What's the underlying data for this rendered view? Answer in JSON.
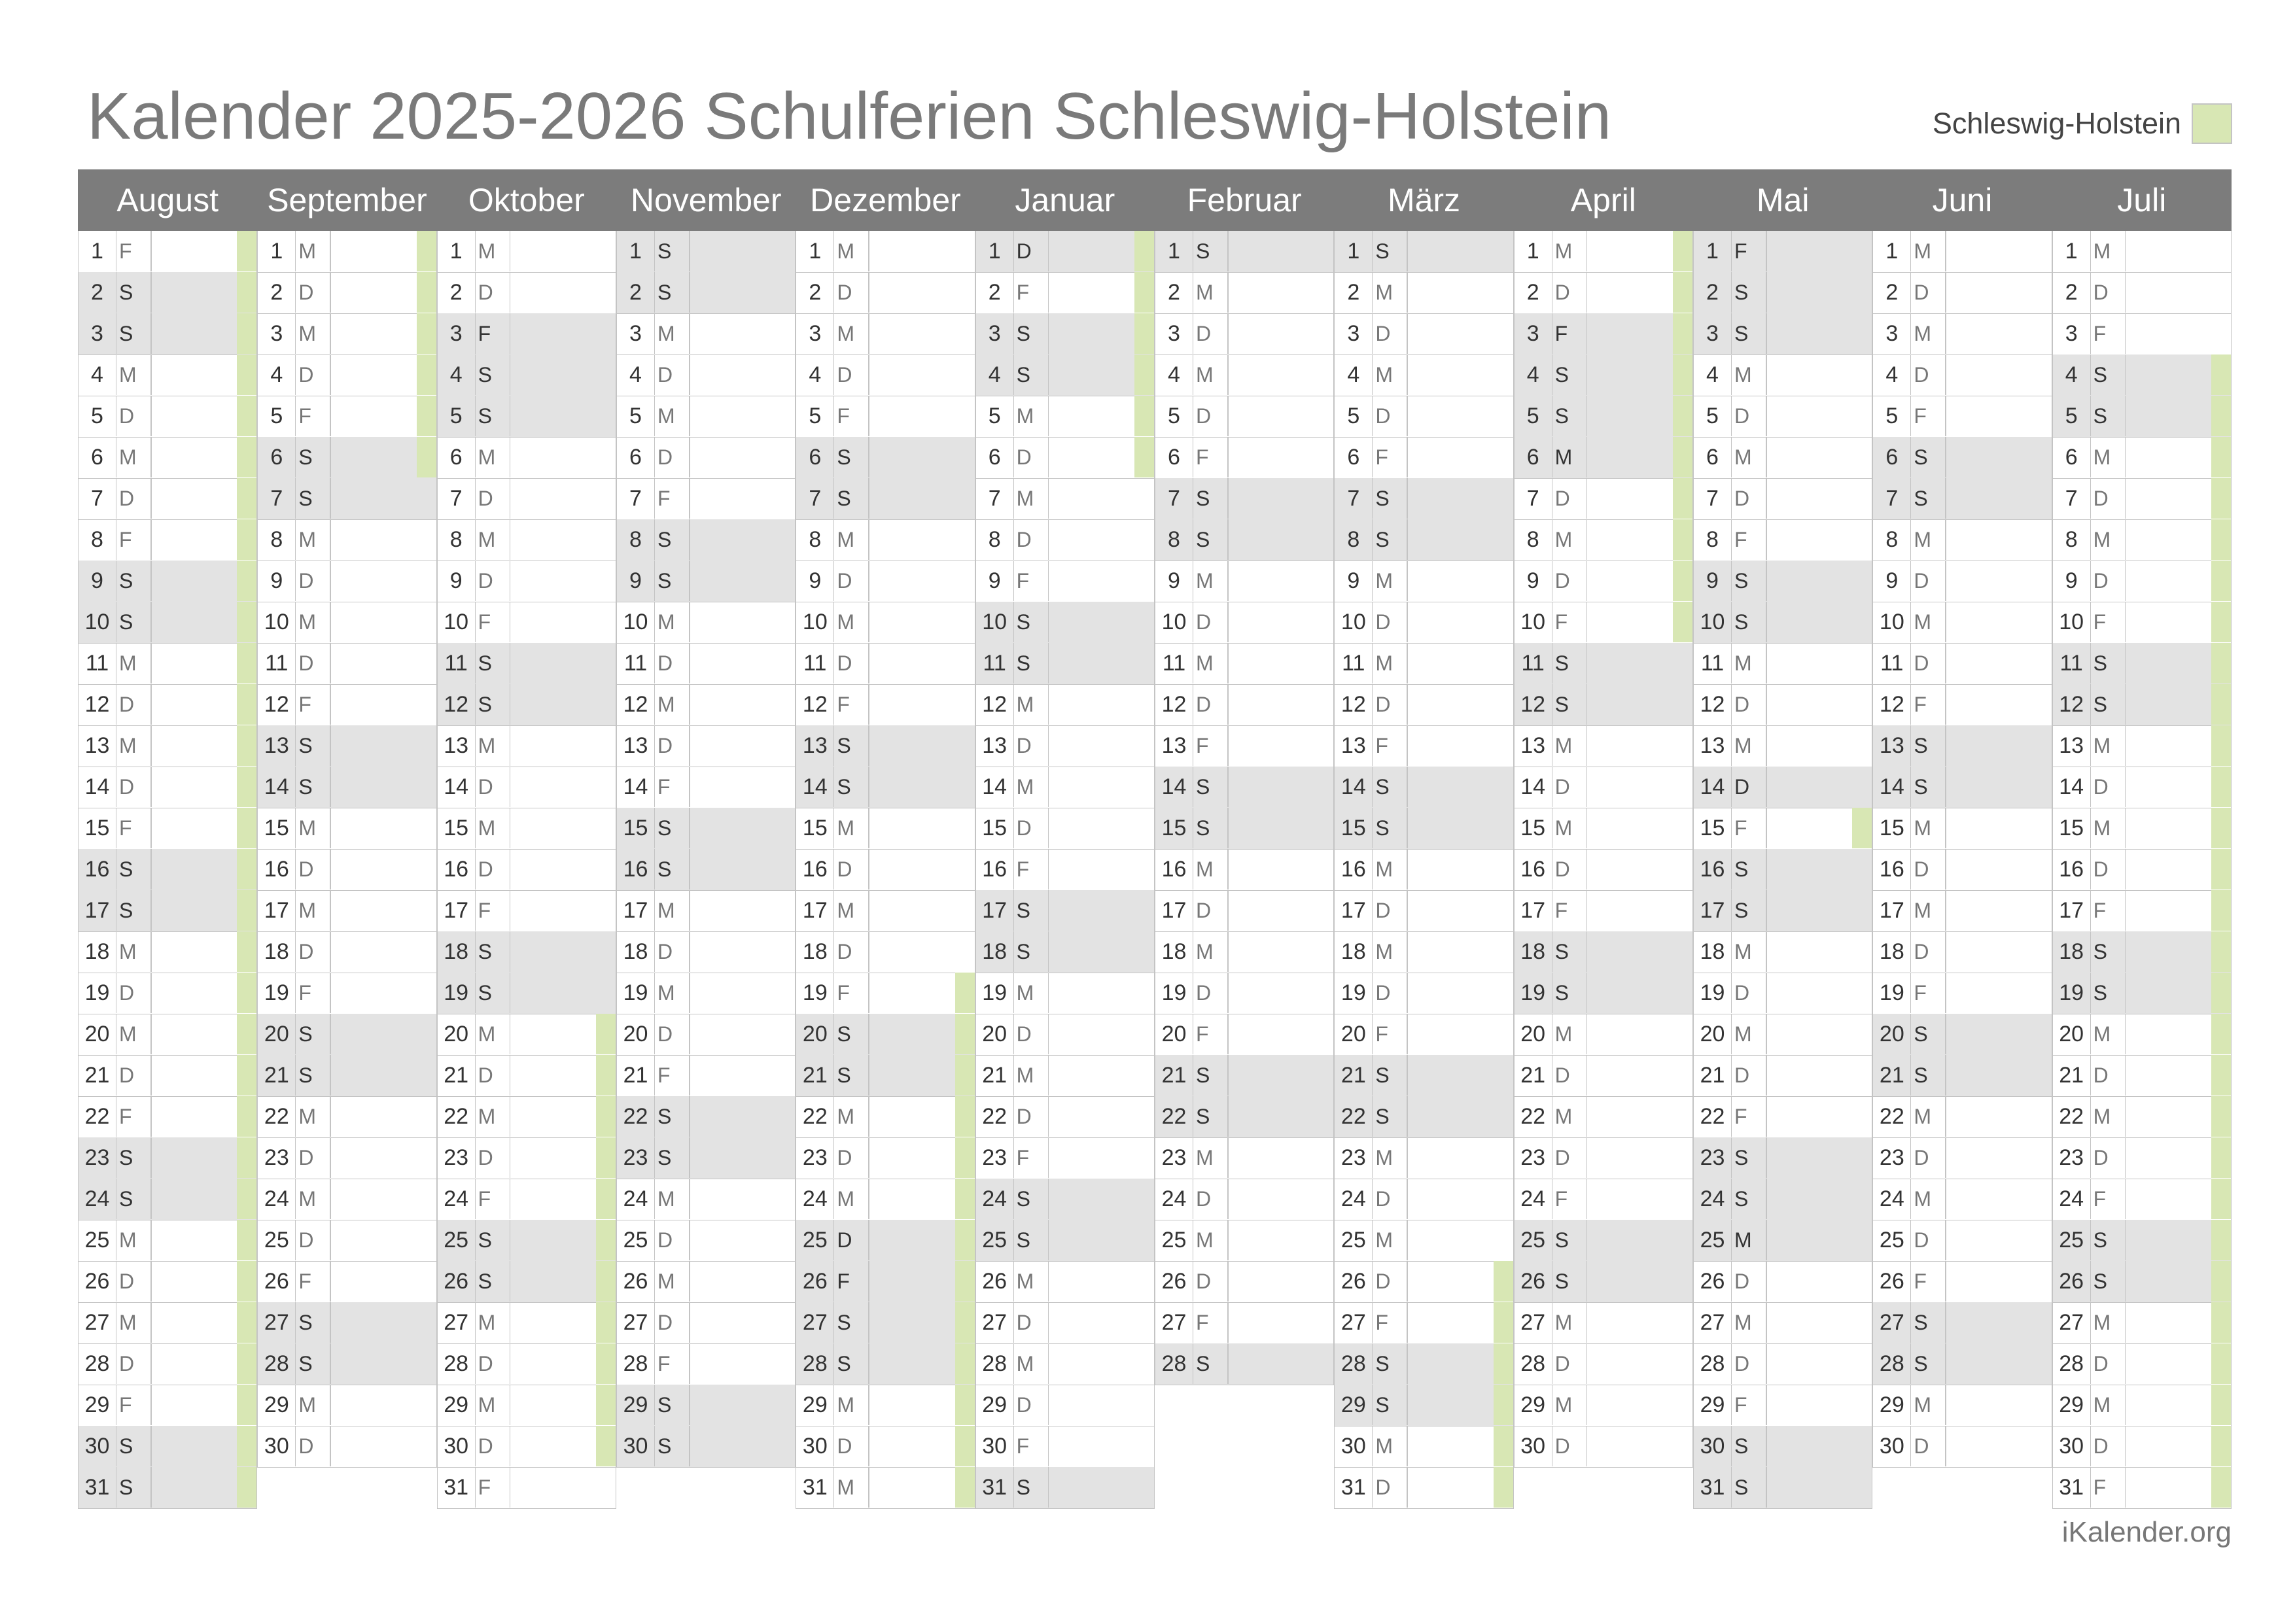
{
  "title": "Kalender 2025-2026 Schulferien Schleswig-Holstein",
  "legend": {
    "label": "Schleswig-Holstein",
    "color": "#d8e7b4"
  },
  "footer": "iKalender.org",
  "months": [
    {
      "name": "August",
      "days": 31,
      "first_dow": 5,
      "holidays": [
        [
          1,
          31
        ]
      ]
    },
    {
      "name": "September",
      "days": 30,
      "first_dow": 1,
      "holidays": [
        [
          1,
          6
        ]
      ]
    },
    {
      "name": "Oktober",
      "days": 31,
      "first_dow": 3,
      "holidays": [
        [
          20,
          30
        ]
      ]
    },
    {
      "name": "November",
      "days": 30,
      "first_dow": 6,
      "holidays": []
    },
    {
      "name": "Dezember",
      "days": 31,
      "first_dow": 1,
      "holidays": [
        [
          19,
          31
        ]
      ]
    },
    {
      "name": "Januar",
      "days": 31,
      "first_dow": 4,
      "holidays": [
        [
          1,
          6
        ]
      ]
    },
    {
      "name": "Februar",
      "days": 28,
      "first_dow": 0,
      "holidays": []
    },
    {
      "name": "März",
      "days": 31,
      "first_dow": 0,
      "holidays": [
        [
          26,
          31
        ]
      ]
    },
    {
      "name": "April",
      "days": 30,
      "first_dow": 3,
      "holidays": [
        [
          1,
          10
        ]
      ]
    },
    {
      "name": "Mai",
      "days": 31,
      "first_dow": 5,
      "holidays": [
        [
          15,
          15
        ]
      ]
    },
    {
      "name": "Juni",
      "days": 30,
      "first_dow": 1,
      "holidays": []
    },
    {
      "name": "Juli",
      "days": 31,
      "first_dow": 3,
      "holidays": [
        [
          4,
          31
        ]
      ]
    }
  ],
  "bold_days": {
    "Dezember": [
      25,
      26
    ],
    "Januar": [
      1
    ],
    "Oktober": [
      3
    ],
    "April": [
      3,
      6
    ],
    "Mai": [
      1,
      14,
      25
    ]
  },
  "weekday_abbrev": [
    "S",
    "M",
    "D",
    "M",
    "D",
    "F",
    "S"
  ]
}
